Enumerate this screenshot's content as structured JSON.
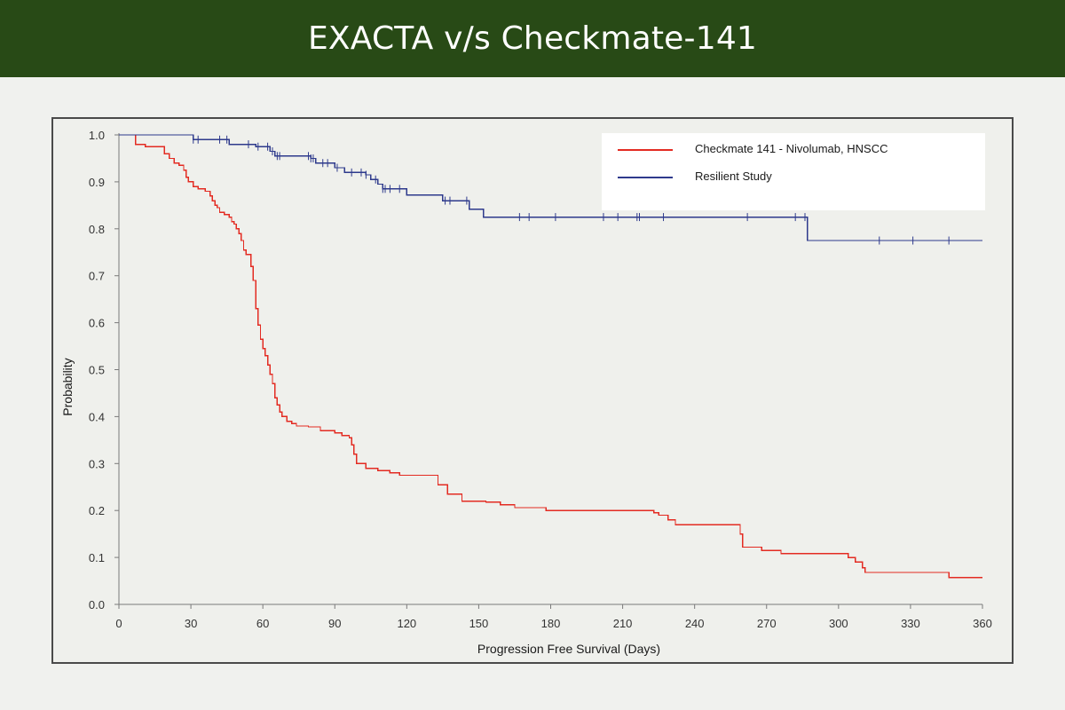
{
  "header": {
    "title": "EXACTA v/s Checkmate-141",
    "background": "#284a16"
  },
  "legend": {
    "items": [
      {
        "label": "Checkmate 141 - Nivolumab, HNSCC",
        "color": "#e32b22"
      },
      {
        "label": "Resilient Study",
        "color": "#2e3a8c"
      }
    ]
  },
  "chart_data": {
    "type": "line",
    "title": "",
    "xlabel": "Progression Free Survival (Days)",
    "ylabel": "Probability",
    "xlim": [
      0,
      360
    ],
    "ylim": [
      0,
      1.0
    ],
    "xticks": [
      0,
      30,
      60,
      90,
      120,
      150,
      180,
      210,
      240,
      270,
      300,
      330,
      360
    ],
    "yticks": [
      "0.0",
      "0.1",
      "0.2",
      "0.3",
      "0.4",
      "0.5",
      "0.6",
      "0.7",
      "0.8",
      "0.9",
      "1.0"
    ],
    "grid": false,
    "legend_position": "top-right",
    "series": [
      {
        "name": "Checkmate 141 - Nivolumab, HNSCC",
        "color": "#e32b22",
        "step": true,
        "points": [
          [
            0,
            1.0
          ],
          [
            7,
            0.98
          ],
          [
            11,
            0.975
          ],
          [
            19,
            0.96
          ],
          [
            21,
            0.95
          ],
          [
            23,
            0.94
          ],
          [
            25,
            0.935
          ],
          [
            27,
            0.925
          ],
          [
            28,
            0.91
          ],
          [
            29,
            0.9
          ],
          [
            31,
            0.89
          ],
          [
            33,
            0.885
          ],
          [
            36,
            0.88
          ],
          [
            38,
            0.87
          ],
          [
            39,
            0.86
          ],
          [
            40,
            0.85
          ],
          [
            41,
            0.845
          ],
          [
            42,
            0.835
          ],
          [
            44,
            0.83
          ],
          [
            46,
            0.825
          ],
          [
            47,
            0.815
          ],
          [
            48,
            0.81
          ],
          [
            49,
            0.8
          ],
          [
            50,
            0.79
          ],
          [
            51,
            0.775
          ],
          [
            52,
            0.755
          ],
          [
            53,
            0.745
          ],
          [
            55,
            0.72
          ],
          [
            56,
            0.69
          ],
          [
            57,
            0.63
          ],
          [
            58,
            0.595
          ],
          [
            59,
            0.565
          ],
          [
            60,
            0.545
          ],
          [
            61,
            0.53
          ],
          [
            62,
            0.51
          ],
          [
            63,
            0.49
          ],
          [
            64,
            0.47
          ],
          [
            65,
            0.44
          ],
          [
            66,
            0.425
          ],
          [
            67,
            0.41
          ],
          [
            68,
            0.4
          ],
          [
            70,
            0.39
          ],
          [
            72,
            0.385
          ],
          [
            74,
            0.38
          ],
          [
            79,
            0.378
          ],
          [
            84,
            0.37
          ],
          [
            90,
            0.365
          ],
          [
            93,
            0.36
          ],
          [
            96,
            0.355
          ],
          [
            97,
            0.34
          ],
          [
            98,
            0.32
          ],
          [
            99,
            0.3
          ],
          [
            103,
            0.29
          ],
          [
            108,
            0.285
          ],
          [
            113,
            0.28
          ],
          [
            117,
            0.275
          ],
          [
            133,
            0.255
          ],
          [
            137,
            0.235
          ],
          [
            143,
            0.22
          ],
          [
            153,
            0.218
          ],
          [
            159,
            0.212
          ],
          [
            165,
            0.206
          ],
          [
            178,
            0.2
          ],
          [
            223,
            0.195
          ],
          [
            225,
            0.19
          ],
          [
            229,
            0.18
          ],
          [
            232,
            0.17
          ],
          [
            259,
            0.15
          ],
          [
            260,
            0.122
          ],
          [
            268,
            0.115
          ],
          [
            276,
            0.108
          ],
          [
            304,
            0.1
          ],
          [
            307,
            0.09
          ],
          [
            310,
            0.078
          ],
          [
            311,
            0.068
          ],
          [
            346,
            0.057
          ],
          [
            360,
            0.057
          ]
        ]
      },
      {
        "name": "Resilient Study",
        "color": "#2e3a8c",
        "step": true,
        "points": [
          [
            0,
            1.0
          ],
          [
            31,
            0.99
          ],
          [
            46,
            0.98
          ],
          [
            57,
            0.975
          ],
          [
            63,
            0.965
          ],
          [
            65,
            0.955
          ],
          [
            80,
            0.95
          ],
          [
            82,
            0.94
          ],
          [
            90,
            0.93
          ],
          [
            94,
            0.92
          ],
          [
            103,
            0.915
          ],
          [
            105,
            0.905
          ],
          [
            108,
            0.895
          ],
          [
            110,
            0.885
          ],
          [
            120,
            0.872
          ],
          [
            135,
            0.86
          ],
          [
            146,
            0.842
          ],
          [
            152,
            0.825
          ],
          [
            287,
            0.775
          ],
          [
            360,
            0.775
          ]
        ],
        "censored": [
          31,
          33,
          42,
          45,
          54,
          58,
          62,
          64,
          66,
          67,
          79,
          80,
          81,
          85,
          87,
          91,
          97,
          101,
          103,
          107,
          110,
          111,
          113,
          117,
          136,
          138,
          145,
          167,
          171,
          182,
          202,
          208,
          216,
          217,
          227,
          262,
          282,
          286,
          317,
          331,
          346
        ]
      }
    ]
  }
}
